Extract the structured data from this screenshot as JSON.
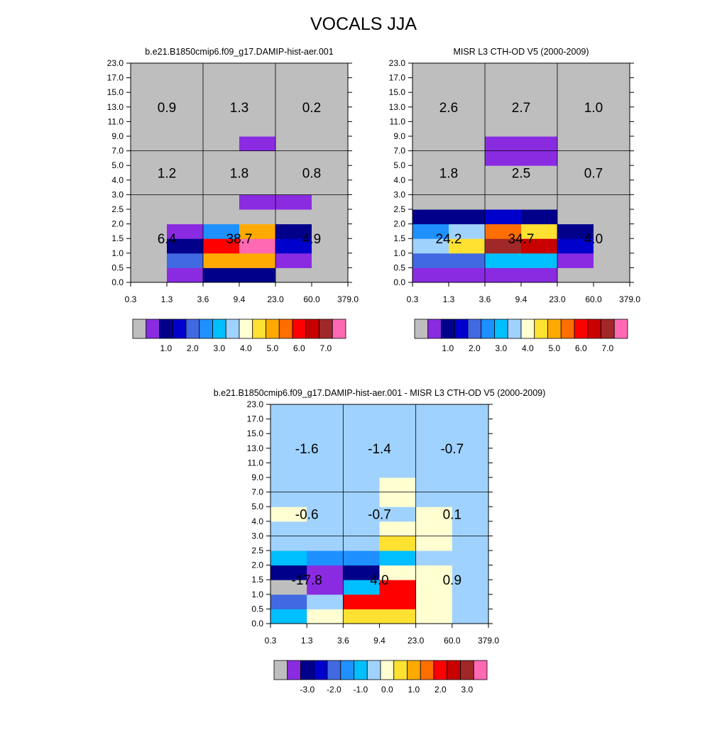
{
  "title": "VOCALS JJA",
  "palette": {
    "abs": [
      "#bebebe",
      "#8a2be2",
      "#00008b",
      "#0000cd",
      "#4169e1",
      "#1e90ff",
      "#00bfff",
      "#a0d2ff",
      "#ffffd2",
      "#ffe132",
      "#ffaa00",
      "#ff6e00",
      "#ff0000",
      "#c80000",
      "#a02828",
      "#ff69b4"
    ],
    "diff": [
      "#bebebe",
      "#8a2be2",
      "#00008b",
      "#0000cd",
      "#4169e1",
      "#1e90ff",
      "#00bfff",
      "#a0d2ff",
      "#ffffd2",
      "#ffe132",
      "#ffaa00",
      "#ff6e00",
      "#ff0000",
      "#c80000",
      "#a02828",
      "#ff69b4"
    ]
  },
  "chart_data": [
    {
      "type": "heatmap",
      "title": "b.e21.B1850cmip6.f09_g17.DAMIP-hist-aer.001",
      "x_tick_labels": [
        "0.3",
        "1.3",
        "3.6",
        "9.4",
        "23.0",
        "60.0",
        "379.0"
      ],
      "y_tick_labels": [
        "0.0",
        "0.5",
        "1.0",
        "1.5",
        "2.0",
        "2.5",
        "3.0",
        "4.0",
        "5.0",
        "7.0",
        "9.0",
        "11.0",
        "13.0",
        "15.0",
        "17.0",
        "23.0"
      ],
      "grid": {
        "x_lines": [
          2,
          4
        ],
        "y_lines": [
          6,
          9
        ]
      },
      "cell_color_index_rows_bottom_to_top": [
        [
          0,
          1,
          2,
          2,
          0,
          0
        ],
        [
          0,
          4,
          10,
          10,
          1,
          0
        ],
        [
          0,
          2,
          12,
          15,
          3,
          0
        ],
        [
          0,
          1,
          5,
          10,
          2,
          0
        ],
        [
          0,
          0,
          0,
          0,
          0,
          0
        ],
        [
          0,
          0,
          0,
          1,
          1,
          0
        ],
        [
          0,
          0,
          0,
          0,
          0,
          0
        ],
        [
          0,
          0,
          0,
          0,
          0,
          0
        ],
        [
          0,
          0,
          0,
          0,
          0,
          0
        ],
        [
          0,
          0,
          0,
          1,
          0,
          0
        ],
        [
          0,
          0,
          0,
          0,
          0,
          0
        ],
        [
          0,
          0,
          0,
          0,
          0,
          0
        ],
        [
          0,
          0,
          0,
          0,
          0,
          0
        ],
        [
          0,
          0,
          0,
          0,
          0,
          0
        ],
        [
          0,
          0,
          0,
          0,
          0,
          0
        ]
      ],
      "region_values": [
        {
          "value": "6.4",
          "col": 0,
          "row": 0
        },
        {
          "value": "38.7",
          "col": 1,
          "row": 0
        },
        {
          "value": "4.9",
          "col": 2,
          "row": 0
        },
        {
          "value": "1.2",
          "col": 0,
          "row": 1
        },
        {
          "value": "1.8",
          "col": 1,
          "row": 1
        },
        {
          "value": "0.8",
          "col": 2,
          "row": 1
        },
        {
          "value": "0.9",
          "col": 0,
          "row": 2
        },
        {
          "value": "1.3",
          "col": 1,
          "row": 2
        },
        {
          "value": "0.2",
          "col": 2,
          "row": 2
        }
      ],
      "colorbar": {
        "labels": [
          "1.0",
          "2.0",
          "3.0",
          "4.0",
          "5.0",
          "6.0",
          "7.0"
        ],
        "label_after_box": [
          1,
          3,
          5,
          7,
          9,
          11,
          13
        ]
      }
    },
    {
      "type": "heatmap",
      "title": "MISR L3 CTH-OD V5 (2000-2009)",
      "x_tick_labels": [
        "0.3",
        "1.3",
        "3.6",
        "9.4",
        "23.0",
        "60.0",
        "379.0"
      ],
      "y_tick_labels": [
        "0.0",
        "0.5",
        "1.0",
        "1.5",
        "2.0",
        "2.5",
        "3.0",
        "4.0",
        "5.0",
        "7.0",
        "9.0",
        "11.0",
        "13.0",
        "15.0",
        "17.0",
        "23.0"
      ],
      "grid": {
        "x_lines": [
          2,
          4
        ],
        "y_lines": [
          6,
          9
        ]
      },
      "cell_color_index_rows_bottom_to_top": [
        [
          1,
          1,
          1,
          1,
          0,
          0
        ],
        [
          4,
          4,
          6,
          6,
          1,
          0
        ],
        [
          7,
          9,
          14,
          13,
          3,
          0
        ],
        [
          5,
          7,
          11,
          9,
          2,
          0
        ],
        [
          2,
          2,
          3,
          2,
          0,
          0
        ],
        [
          0,
          0,
          0,
          0,
          0,
          0
        ],
        [
          0,
          0,
          0,
          0,
          0,
          0
        ],
        [
          0,
          0,
          0,
          0,
          0,
          0
        ],
        [
          0,
          0,
          1,
          1,
          0,
          0
        ],
        [
          0,
          0,
          1,
          1,
          0,
          0
        ],
        [
          0,
          0,
          0,
          0,
          0,
          0
        ],
        [
          0,
          0,
          0,
          0,
          0,
          0
        ],
        [
          0,
          0,
          0,
          0,
          0,
          0
        ],
        [
          0,
          0,
          0,
          0,
          0,
          0
        ],
        [
          0,
          0,
          0,
          0,
          0,
          0
        ]
      ],
      "region_values": [
        {
          "value": "24.2",
          "col": 0,
          "row": 0
        },
        {
          "value": "34.7",
          "col": 1,
          "row": 0
        },
        {
          "value": "4.0",
          "col": 2,
          "row": 0
        },
        {
          "value": "1.8",
          "col": 0,
          "row": 1
        },
        {
          "value": "2.5",
          "col": 1,
          "row": 1
        },
        {
          "value": "0.7",
          "col": 2,
          "row": 1
        },
        {
          "value": "2.6",
          "col": 0,
          "row": 2
        },
        {
          "value": "2.7",
          "col": 1,
          "row": 2
        },
        {
          "value": "1.0",
          "col": 2,
          "row": 2
        }
      ],
      "colorbar": {
        "labels": [
          "1.0",
          "2.0",
          "3.0",
          "4.0",
          "5.0",
          "6.0",
          "7.0"
        ],
        "label_after_box": [
          1,
          3,
          5,
          7,
          9,
          11,
          13
        ]
      }
    },
    {
      "type": "heatmap",
      "title": "b.e21.B1850cmip6.f09_g17.DAMIP-hist-aer.001 - MISR L3 CTH-OD V5 (2000-2009)",
      "x_tick_labels": [
        "0.3",
        "1.3",
        "3.6",
        "9.4",
        "23.0",
        "60.0",
        "379.0"
      ],
      "y_tick_labels": [
        "0.0",
        "0.5",
        "1.0",
        "1.5",
        "2.0",
        "2.5",
        "3.0",
        "4.0",
        "5.0",
        "7.0",
        "9.0",
        "11.0",
        "13.0",
        "15.0",
        "17.0",
        "23.0"
      ],
      "grid": {
        "x_lines": [
          2,
          4
        ],
        "y_lines": [
          6,
          9
        ]
      },
      "cell_color_index_rows_bottom_to_top": [
        [
          6,
          8,
          9,
          9,
          8,
          7
        ],
        [
          4,
          7,
          12,
          12,
          8,
          7
        ],
        [
          0,
          1,
          6,
          12,
          8,
          7
        ],
        [
          2,
          1,
          2,
          8,
          8,
          7
        ],
        [
          6,
          5,
          5,
          6,
          7,
          7
        ],
        [
          7,
          7,
          7,
          9,
          8,
          7
        ],
        [
          7,
          7,
          7,
          8,
          8,
          7
        ],
        [
          8,
          7,
          7,
          7,
          8,
          7
        ],
        [
          7,
          7,
          7,
          8,
          7,
          7
        ],
        [
          7,
          7,
          7,
          8,
          7,
          7
        ],
        [
          7,
          7,
          7,
          7,
          7,
          7
        ],
        [
          7,
          7,
          7,
          7,
          7,
          7
        ],
        [
          7,
          7,
          7,
          7,
          7,
          7
        ],
        [
          7,
          7,
          7,
          7,
          7,
          7
        ],
        [
          7,
          7,
          7,
          7,
          7,
          7
        ]
      ],
      "region_values": [
        {
          "value": "-17.8",
          "col": 0,
          "row": 0
        },
        {
          "value": "4.0",
          "col": 1,
          "row": 0
        },
        {
          "value": "0.9",
          "col": 2,
          "row": 0
        },
        {
          "value": "-0.6",
          "col": 0,
          "row": 1
        },
        {
          "value": "-0.7",
          "col": 1,
          "row": 1
        },
        {
          "value": "0.1",
          "col": 2,
          "row": 1
        },
        {
          "value": "-1.6",
          "col": 0,
          "row": 2
        },
        {
          "value": "-1.4",
          "col": 1,
          "row": 2
        },
        {
          "value": "-0.7",
          "col": 2,
          "row": 2
        }
      ],
      "colorbar": {
        "labels": [
          "-3.0",
          "-2.0",
          "-1.0",
          "0.0",
          "1.0",
          "2.0",
          "3.0"
        ],
        "label_after_box": [
          1,
          3,
          5,
          7,
          9,
          11,
          13
        ]
      }
    }
  ]
}
